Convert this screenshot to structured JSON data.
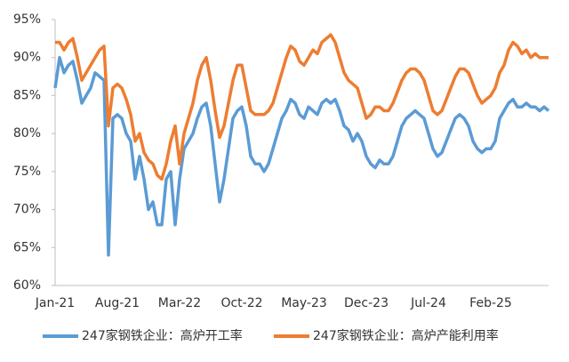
{
  "chart_data": {
    "type": "line",
    "categories": [
      "Jan-21",
      null,
      null,
      null,
      null,
      null,
      null,
      null,
      null,
      null,
      null,
      null,
      null,
      null,
      "Aug-21",
      null,
      null,
      null,
      null,
      null,
      null,
      null,
      null,
      null,
      null,
      null,
      null,
      null,
      "Mar-22",
      null,
      null,
      null,
      null,
      null,
      null,
      null,
      null,
      null,
      null,
      null,
      null,
      null,
      "Oct-22",
      null,
      null,
      null,
      null,
      null,
      null,
      null,
      null,
      null,
      null,
      null,
      null,
      null,
      "May-23",
      null,
      null,
      null,
      null,
      null,
      null,
      null,
      null,
      null,
      null,
      null,
      null,
      null,
      "Dec-23",
      null,
      null,
      null,
      null,
      null,
      null,
      null,
      null,
      null,
      null,
      null,
      null,
      null,
      "Jul-24",
      null,
      null,
      null,
      null,
      null,
      null,
      null,
      null,
      null,
      null,
      null,
      null,
      null,
      "Feb-25",
      null,
      null,
      null,
      null,
      null,
      null,
      null,
      null,
      null,
      null,
      null,
      null,
      null
    ],
    "series": [
      {
        "name": "247家钢铁企业：高炉开工率",
        "color": "#5b9bd5",
        "values": [
          86,
          90,
          88,
          89,
          89.5,
          87,
          84,
          85,
          86,
          88,
          87.5,
          87,
          64,
          82,
          82.5,
          82,
          80,
          79,
          74,
          77,
          74,
          70,
          71,
          68,
          68,
          74,
          75,
          68,
          74,
          78,
          79,
          80,
          82,
          83.5,
          84,
          81,
          76,
          71,
          74,
          78,
          82,
          83,
          83.5,
          81,
          77,
          76,
          76,
          75,
          76,
          78,
          80,
          82,
          83,
          84.5,
          84,
          82.5,
          82,
          83.5,
          83,
          82.5,
          84,
          84.5,
          84,
          84.5,
          83,
          81,
          80.5,
          79,
          80,
          79,
          77,
          76,
          75.5,
          76.5,
          76,
          76,
          77,
          79,
          81,
          82,
          82.5,
          83,
          82.5,
          82,
          80,
          78,
          77,
          77.5,
          79,
          80.5,
          82,
          82.5,
          82,
          81,
          79,
          78,
          77.5,
          78,
          78,
          79,
          82,
          83,
          84,
          84.5,
          83.5,
          83.5,
          84,
          83.5,
          83.5,
          83,
          83.5,
          83
        ]
      },
      {
        "name": "247家钢铁企业：高炉产能利用率",
        "color": "#ed7d31",
        "values": [
          92,
          92,
          91,
          92,
          92.5,
          90,
          87,
          88,
          89,
          90,
          91,
          91.5,
          81,
          86,
          86.5,
          86,
          84.5,
          82.5,
          79,
          80,
          77.5,
          76.5,
          76,
          74.5,
          74,
          76,
          79,
          81,
          76,
          80,
          82,
          84,
          87,
          89,
          90,
          87,
          83,
          79.5,
          81,
          84,
          87,
          89,
          89,
          86,
          83,
          82.5,
          82.5,
          82.5,
          83,
          84,
          86,
          88,
          90,
          91.5,
          91,
          89.5,
          89,
          90,
          91,
          90.5,
          92,
          92.5,
          93,
          92,
          90,
          88,
          87,
          86.5,
          86,
          84,
          82,
          82.5,
          83.5,
          83.5,
          83,
          83,
          84,
          85.5,
          87,
          88,
          88.5,
          88.5,
          88,
          87,
          85,
          83,
          82.5,
          83,
          84.5,
          86,
          87.5,
          88.5,
          88.5,
          88,
          86.5,
          85,
          84,
          84.5,
          85,
          86,
          88,
          89,
          91,
          92,
          91.5,
          90.5,
          91,
          90,
          90.5,
          90,
          90,
          90
        ]
      }
    ],
    "ylim": [
      60,
      95
    ],
    "yticks": [
      {
        "value": 60,
        "label": "60%"
      },
      {
        "value": 65,
        "label": "65%"
      },
      {
        "value": 70,
        "label": "70%"
      },
      {
        "value": 75,
        "label": "75%"
      },
      {
        "value": 80,
        "label": "80%"
      },
      {
        "value": 85,
        "label": "85%"
      },
      {
        "value": 90,
        "label": "90%"
      },
      {
        "value": 95,
        "label": "95%"
      }
    ],
    "grid": false
  }
}
